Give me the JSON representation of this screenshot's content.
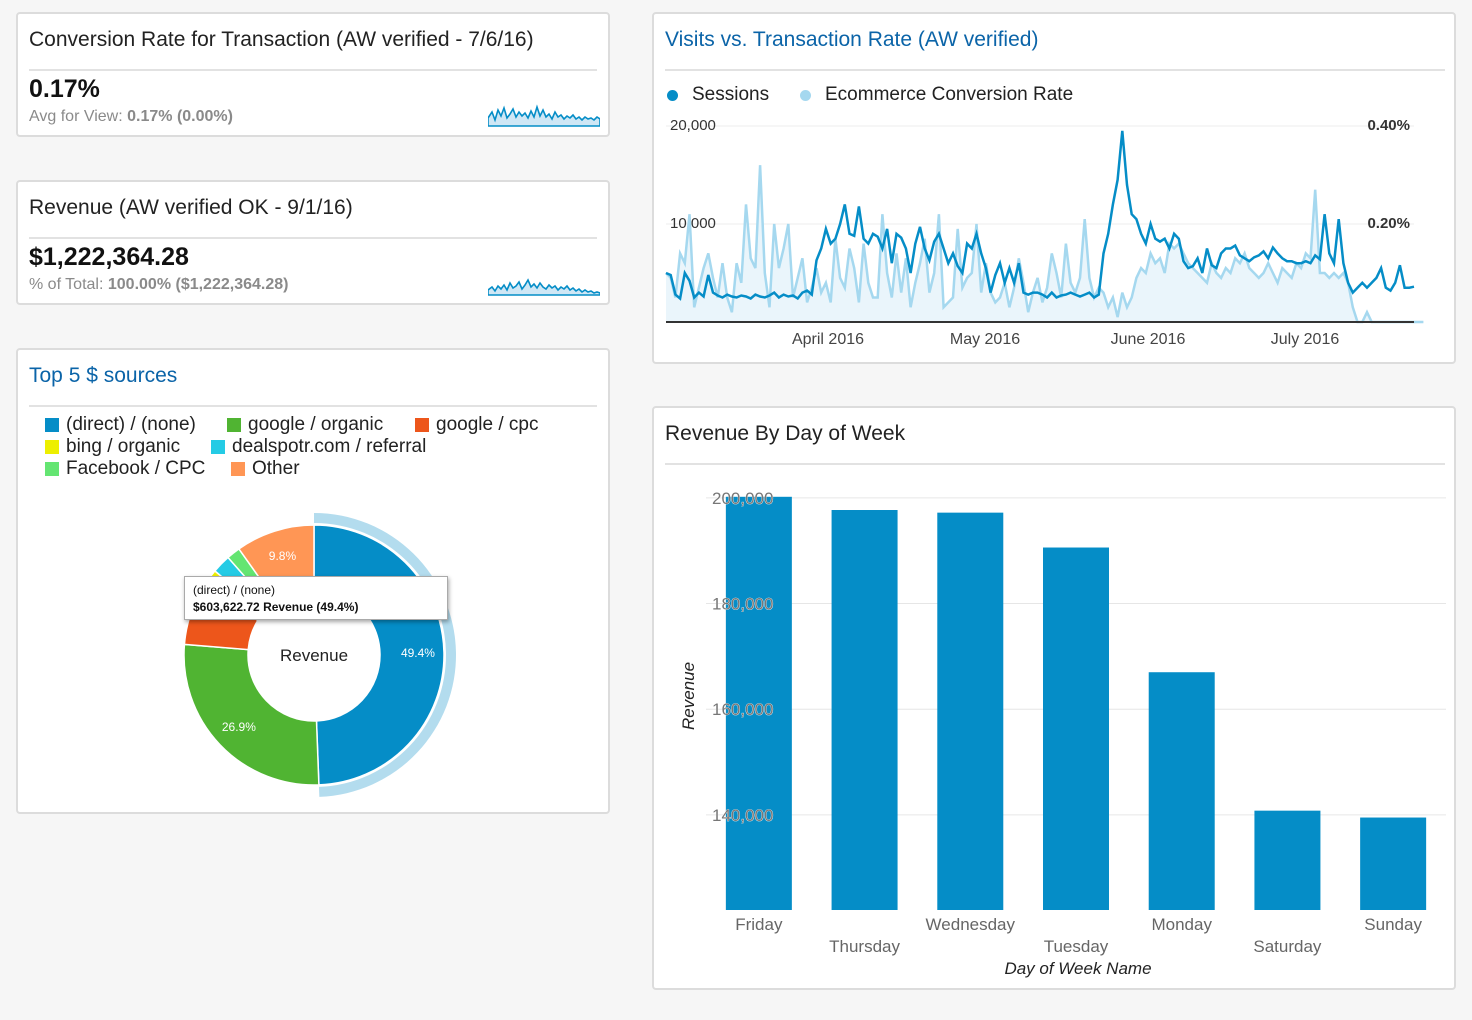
{
  "conversion": {
    "title": "Conversion Rate for Transaction (AW verified - 7/6/16)",
    "value": "0.17%",
    "sub_label": "Avg for View:",
    "sub_value": "0.17% (0.00%)"
  },
  "revenue": {
    "title": "Revenue (AW verified OK - 9/1/16)",
    "value": "$1,222,364.28",
    "sub_label": "% of Total:",
    "sub_value": "100.00% ($1,222,364.28)"
  },
  "sources": {
    "title": "Top 5 $ sources",
    "center_label": "Revenue",
    "tooltip_line1": "(direct) / (none)",
    "tooltip_line2": "$603,622.72 Revenue (49.4%)",
    "legend": [
      {
        "label": "(direct) / (none)",
        "color": "#058dc7"
      },
      {
        "label": "google / organic",
        "color": "#50b432"
      },
      {
        "label": "google / cpc",
        "color": "#ed561b"
      },
      {
        "label": "bing / organic",
        "color": "#edef00"
      },
      {
        "label": "dealspotr.com / referral",
        "color": "#24cbe5"
      },
      {
        "label": "Facebook / CPC",
        "color": "#64e572"
      },
      {
        "label": "Other",
        "color": "#ff9655"
      }
    ]
  },
  "visits": {
    "title": "Visits vs. Transaction Rate (AW verified)",
    "legend_sessions": "Sessions",
    "legend_rate": "Ecommerce Conversion Rate",
    "colors": {
      "sessions": "#058dc7",
      "rate": "#a5d8ef"
    }
  },
  "dow": {
    "title": "Revenue By Day of Week",
    "bar_color": "#058dc7"
  },
  "chart_data": [
    {
      "type": "pie",
      "categories": [
        "(direct) / (none)",
        "google / organic",
        "google / cpc",
        "bing / organic",
        "dealspotr.com / referral",
        "Facebook / CPC",
        "Other"
      ],
      "values": [
        49.4,
        26.9,
        7.5,
        2.4,
        2.3,
        1.7,
        9.8
      ],
      "value_labels": [
        "49.4%",
        "26.9%",
        "",
        "",
        "",
        "",
        "9.8%"
      ],
      "colors": [
        "#058dc7",
        "#50b432",
        "#ed561b",
        "#edef00",
        "#24cbe5",
        "#64e572",
        "#ff9655"
      ],
      "donut": true
    },
    {
      "type": "line",
      "x_ticks": [
        "April 2016",
        "May 2016",
        "June 2016",
        "July 2016"
      ],
      "y_ticks_left": [
        "20,000",
        "10,000"
      ],
      "y_ticks_right": [
        "0.40%",
        "0.20%"
      ],
      "ylim_left": [
        0,
        20000
      ],
      "ylim_right": [
        0,
        0.4
      ],
      "series": [
        {
          "name": "Sessions",
          "values": [
            5000,
            4800,
            2800,
            2400,
            5000,
            4200,
            2500,
            3000,
            2600,
            4800,
            3000,
            2700,
            2500,
            2800,
            2600,
            2500,
            2700,
            2600,
            2400,
            2800,
            2600,
            2500,
            2700,
            3000,
            2500,
            2800,
            2600,
            2700,
            2400,
            3000,
            3200,
            2800,
            6300,
            7500,
            9500,
            8000,
            8500,
            10000,
            12000,
            9000,
            8800,
            11800,
            8500,
            8000,
            9000,
            8700,
            7500,
            9500,
            6000,
            9000,
            8600,
            7500,
            5000,
            8000,
            9700,
            7500,
            6300,
            8200,
            9000,
            7500,
            6000,
            7000,
            5700,
            5000,
            8000,
            7500,
            9000,
            7000,
            5500,
            3000,
            4800,
            6000,
            4000,
            5500,
            4000,
            6000,
            3000,
            2800,
            3000,
            3000,
            2800,
            2500,
            3000,
            2500,
            2700,
            2800,
            3000,
            2800,
            2600,
            2800,
            3000,
            2500,
            2800,
            7000,
            9000,
            12000,
            14500,
            19500,
            14000,
            11000,
            10500,
            9000,
            8000,
            10000,
            8500,
            8200,
            8500,
            7500,
            9000,
            8500,
            6200,
            5500,
            5700,
            6500,
            5000,
            7500,
            5800,
            5500,
            7000,
            7500,
            7500,
            7800,
            6800,
            6500,
            6200,
            6600,
            6800,
            7200,
            6500,
            7600,
            7000,
            6500,
            6200,
            6200,
            6000,
            6000,
            6200,
            6000,
            6800,
            6400,
            11000,
            7000,
            6000,
            10500,
            6000,
            4000,
            3000,
            3500,
            4000,
            3500,
            4000,
            4500,
            5500,
            3500,
            3200,
            4000,
            5800,
            3500,
            3500,
            3600
          ]
        },
        {
          "name": "Ecommerce Conversion Rate",
          "values": [
            0.1,
            0.09,
            0.05,
            0.14,
            0.12,
            0.22,
            0.03,
            0.07,
            0.11,
            0.14,
            0.09,
            0.05,
            0.12,
            0.05,
            0.02,
            0.12,
            0.08,
            0.24,
            0.13,
            0.11,
            0.32,
            0.1,
            0.03,
            0.2,
            0.11,
            0.15,
            0.2,
            0.05,
            0.09,
            0.13,
            0.04,
            0.07,
            0.11,
            0.06,
            0.08,
            0.04,
            0.17,
            0.09,
            0.07,
            0.15,
            0.11,
            0.04,
            0.16,
            0.08,
            0.05,
            0.05,
            0.22,
            0.1,
            0.05,
            0.14,
            0.06,
            0.13,
            0.03,
            0.08,
            0.12,
            0.17,
            0.06,
            0.1,
            0.22,
            0.03,
            0.04,
            0.05,
            0.19,
            0.07,
            0.09,
            0.1,
            0.2,
            0.06,
            0.12,
            0.06,
            0.04,
            0.05,
            0.08,
            0.03,
            0.07,
            0.13,
            0.08,
            0.02,
            0.06,
            0.09,
            0.04,
            0.07,
            0.14,
            0.1,
            0.05,
            0.16,
            0.08,
            0.06,
            0.09,
            0.21,
            0.09,
            0.05,
            0.07,
            0.06,
            0.03,
            0.05,
            0.01,
            0.06,
            0.03,
            0.05,
            0.09,
            0.11,
            0.1,
            0.14,
            0.12,
            0.13,
            0.1,
            0.16,
            0.15,
            0.16,
            0.14,
            0.12,
            0.11,
            0.1,
            0.09,
            0.08,
            0.12,
            0.1,
            0.09,
            0.11,
            0.1,
            0.13,
            0.12,
            0.14,
            0.11,
            0.1,
            0.09,
            0.1,
            0.12,
            0.1,
            0.08,
            0.11,
            0.1,
            0.09,
            0.12,
            0.11,
            0.14,
            0.13,
            0.27,
            0.1,
            0.1,
            0.09,
            0.1,
            0.09,
            0.1,
            0.08,
            0.03,
            0.0,
            0.0,
            0.02,
            0.0,
            0.0,
            0.0,
            0.0,
            0.0,
            0.0,
            0.0,
            0.0,
            0.0,
            0.0,
            0.0,
            0.0
          ]
        }
      ],
      "grid": true
    },
    {
      "type": "bar",
      "title": "Revenue By Day of Week",
      "categories": [
        "Friday",
        "Thursday",
        "Wednesday",
        "Tuesday",
        "Monday",
        "Saturday",
        "Sunday"
      ],
      "values": [
        200200,
        197700,
        197200,
        190600,
        167000,
        140800,
        139500
      ],
      "xlabel": "Day of Week Name",
      "ylabel": "Revenue",
      "y_ticks": [
        "200,000",
        "180,000",
        "160,000",
        "140,000"
      ],
      "y_tick_values": [
        200000,
        180000,
        160000,
        140000
      ],
      "ylim": [
        122000,
        203000
      ],
      "grid": true
    }
  ]
}
